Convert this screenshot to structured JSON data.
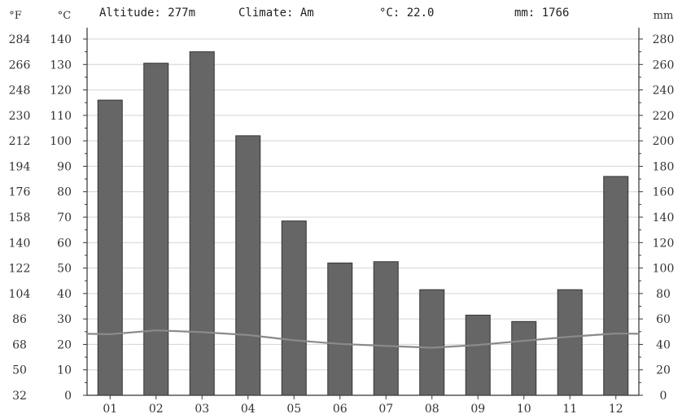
{
  "header": {
    "altitude": "Altitude: 277m",
    "climate": "Climate: Am",
    "mean_temp": "°C: 22.0",
    "annual_precip": "mm: 1766"
  },
  "chart_data": {
    "type": "bar",
    "title": "",
    "categories": [
      "01",
      "02",
      "03",
      "04",
      "05",
      "06",
      "07",
      "08",
      "09",
      "10",
      "11",
      "12"
    ],
    "series": [
      {
        "name": "",
        "type": "bar",
        "axis": "mm",
        "values": [
          232,
          261,
          270,
          204,
          137,
          104,
          105,
          83,
          63,
          58,
          83,
          172
        ],
        "color": "#666666"
      },
      {
        "name": "",
        "type": "line",
        "axis": "°C",
        "values": [
          24.0,
          25.5,
          24.8,
          23.7,
          21.6,
          20.2,
          19.4,
          18.7,
          19.8,
          21.4,
          23.0,
          24.3
        ],
        "color": "#8a8a8a"
      }
    ],
    "axes": {
      "left_outer": {
        "label": "°F",
        "ticks": [
          "32",
          "50",
          "68",
          "86",
          "104",
          "122",
          "140",
          "158",
          "176",
          "194",
          "212",
          "230",
          "248",
          "266",
          "284"
        ]
      },
      "left_inner": {
        "label": "°C",
        "range": [
          0,
          140
        ],
        "ticks": [
          "0",
          "10",
          "20",
          "30",
          "40",
          "50",
          "60",
          "70",
          "80",
          "90",
          "100",
          "110",
          "120",
          "130",
          "140"
        ]
      },
      "right": {
        "label": "mm",
        "range": [
          0,
          280
        ],
        "ticks": [
          "0",
          "20",
          "40",
          "60",
          "80",
          "100",
          "120",
          "140",
          "160",
          "180",
          "200",
          "220",
          "240",
          "260",
          "280"
        ]
      }
    },
    "grid": true,
    "legend": "none"
  }
}
